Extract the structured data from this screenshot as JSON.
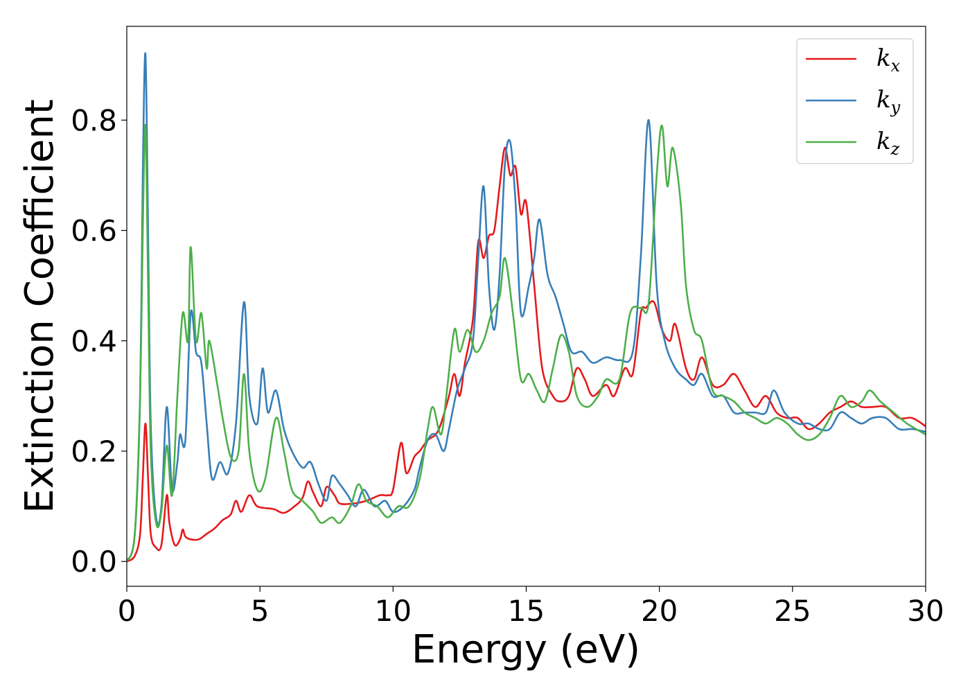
{
  "chart_data": {
    "type": "line",
    "title": "",
    "xlabel": "Energy (eV)",
    "ylabel": "Extinction Coefficient",
    "xlim": [
      0,
      30
    ],
    "ylim": [
      -0.045,
      0.97
    ],
    "xticks": [
      0,
      5,
      10,
      15,
      20,
      25,
      30
    ],
    "xtick_labels": [
      "0",
      "5",
      "10",
      "15",
      "20",
      "25",
      "30"
    ],
    "yticks": [
      0.0,
      0.2,
      0.4,
      0.6,
      0.8
    ],
    "ytick_labels": [
      "0.0",
      "0.2",
      "0.4",
      "0.6",
      "0.8"
    ],
    "grid": false,
    "legend": "top-right",
    "series": [
      {
        "name": "k_x",
        "base": "k",
        "sub": "x",
        "color": "#e41a1c",
        "points": [
          [
            0,
            0.0
          ],
          [
            0.3,
            0.01
          ],
          [
            0.5,
            0.05
          ],
          [
            0.6,
            0.15
          ],
          [
            0.7,
            0.25
          ],
          [
            0.8,
            0.15
          ],
          [
            0.9,
            0.05
          ],
          [
            1.1,
            0.025
          ],
          [
            1.3,
            0.03
          ],
          [
            1.5,
            0.12
          ],
          [
            1.6,
            0.07
          ],
          [
            1.8,
            0.03
          ],
          [
            2.0,
            0.04
          ],
          [
            2.1,
            0.058
          ],
          [
            2.2,
            0.045
          ],
          [
            2.4,
            0.04
          ],
          [
            2.7,
            0.04
          ],
          [
            3.0,
            0.05
          ],
          [
            3.3,
            0.06
          ],
          [
            3.6,
            0.075
          ],
          [
            3.9,
            0.085
          ],
          [
            4.1,
            0.11
          ],
          [
            4.3,
            0.09
          ],
          [
            4.6,
            0.12
          ],
          [
            4.9,
            0.1
          ],
          [
            5.5,
            0.095
          ],
          [
            5.9,
            0.088
          ],
          [
            6.3,
            0.1
          ],
          [
            6.6,
            0.115
          ],
          [
            6.8,
            0.145
          ],
          [
            7.0,
            0.125
          ],
          [
            7.3,
            0.1
          ],
          [
            7.5,
            0.135
          ],
          [
            7.8,
            0.12
          ],
          [
            8.0,
            0.105
          ],
          [
            8.5,
            0.105
          ],
          [
            9.0,
            0.11
          ],
          [
            9.5,
            0.12
          ],
          [
            9.8,
            0.12
          ],
          [
            10.0,
            0.13
          ],
          [
            10.3,
            0.215
          ],
          [
            10.5,
            0.16
          ],
          [
            10.8,
            0.19
          ],
          [
            11.0,
            0.2
          ],
          [
            11.3,
            0.22
          ],
          [
            11.6,
            0.23
          ],
          [
            11.8,
            0.25
          ],
          [
            12.1,
            0.3
          ],
          [
            12.3,
            0.34
          ],
          [
            12.5,
            0.3
          ],
          [
            12.7,
            0.36
          ],
          [
            13.0,
            0.44
          ],
          [
            13.2,
            0.58
          ],
          [
            13.4,
            0.55
          ],
          [
            13.6,
            0.59
          ],
          [
            13.8,
            0.6
          ],
          [
            14.0,
            0.68
          ],
          [
            14.2,
            0.75
          ],
          [
            14.4,
            0.7
          ],
          [
            14.6,
            0.715
          ],
          [
            14.8,
            0.63
          ],
          [
            15.0,
            0.65
          ],
          [
            15.3,
            0.5
          ],
          [
            15.6,
            0.35
          ],
          [
            16.0,
            0.3
          ],
          [
            16.3,
            0.29
          ],
          [
            16.6,
            0.3
          ],
          [
            16.9,
            0.35
          ],
          [
            17.2,
            0.33
          ],
          [
            17.5,
            0.3
          ],
          [
            18.0,
            0.32
          ],
          [
            18.3,
            0.3
          ],
          [
            18.7,
            0.35
          ],
          [
            19.0,
            0.34
          ],
          [
            19.3,
            0.45
          ],
          [
            19.5,
            0.46
          ],
          [
            19.8,
            0.47
          ],
          [
            20.1,
            0.42
          ],
          [
            20.4,
            0.4
          ],
          [
            20.6,
            0.43
          ],
          [
            21.0,
            0.35
          ],
          [
            21.3,
            0.33
          ],
          [
            21.6,
            0.37
          ],
          [
            22.0,
            0.32
          ],
          [
            22.4,
            0.32
          ],
          [
            22.8,
            0.34
          ],
          [
            23.2,
            0.31
          ],
          [
            23.6,
            0.28
          ],
          [
            24.0,
            0.3
          ],
          [
            24.4,
            0.27
          ],
          [
            24.8,
            0.26
          ],
          [
            25.2,
            0.26
          ],
          [
            25.6,
            0.24
          ],
          [
            26.0,
            0.25
          ],
          [
            26.4,
            0.27
          ],
          [
            26.8,
            0.28
          ],
          [
            27.2,
            0.29
          ],
          [
            27.6,
            0.28
          ],
          [
            28.0,
            0.28
          ],
          [
            28.5,
            0.28
          ],
          [
            29.0,
            0.26
          ],
          [
            29.5,
            0.26
          ],
          [
            30.0,
            0.245
          ]
        ]
      },
      {
        "name": "k_y",
        "base": "k",
        "sub": "y",
        "color": "#377eb8",
        "points": [
          [
            0,
            0.0
          ],
          [
            0.3,
            0.05
          ],
          [
            0.5,
            0.3
          ],
          [
            0.6,
            0.7
          ],
          [
            0.7,
            0.92
          ],
          [
            0.8,
            0.6
          ],
          [
            0.9,
            0.25
          ],
          [
            1.1,
            0.08
          ],
          [
            1.3,
            0.1
          ],
          [
            1.5,
            0.28
          ],
          [
            1.7,
            0.13
          ],
          [
            1.9,
            0.18
          ],
          [
            2.0,
            0.23
          ],
          [
            2.2,
            0.22
          ],
          [
            2.4,
            0.45
          ],
          [
            2.6,
            0.38
          ],
          [
            2.8,
            0.36
          ],
          [
            3.0,
            0.25
          ],
          [
            3.2,
            0.15
          ],
          [
            3.5,
            0.18
          ],
          [
            3.8,
            0.16
          ],
          [
            4.1,
            0.25
          ],
          [
            4.4,
            0.47
          ],
          [
            4.6,
            0.3
          ],
          [
            4.9,
            0.25
          ],
          [
            5.1,
            0.35
          ],
          [
            5.3,
            0.27
          ],
          [
            5.6,
            0.31
          ],
          [
            5.9,
            0.24
          ],
          [
            6.2,
            0.2
          ],
          [
            6.6,
            0.17
          ],
          [
            6.9,
            0.18
          ],
          [
            7.2,
            0.14
          ],
          [
            7.5,
            0.11
          ],
          [
            7.7,
            0.155
          ],
          [
            8.0,
            0.14
          ],
          [
            8.3,
            0.12
          ],
          [
            8.6,
            0.1
          ],
          [
            8.9,
            0.13
          ],
          [
            9.3,
            0.1
          ],
          [
            9.7,
            0.11
          ],
          [
            10.0,
            0.09
          ],
          [
            10.4,
            0.1
          ],
          [
            10.8,
            0.13
          ],
          [
            11.0,
            0.17
          ],
          [
            11.3,
            0.22
          ],
          [
            11.6,
            0.23
          ],
          [
            11.9,
            0.2
          ],
          [
            12.1,
            0.24
          ],
          [
            12.4,
            0.31
          ],
          [
            12.7,
            0.35
          ],
          [
            13.0,
            0.4
          ],
          [
            13.2,
            0.55
          ],
          [
            13.4,
            0.68
          ],
          [
            13.6,
            0.5
          ],
          [
            13.8,
            0.42
          ],
          [
            14.0,
            0.52
          ],
          [
            14.2,
            0.72
          ],
          [
            14.4,
            0.76
          ],
          [
            14.6,
            0.65
          ],
          [
            14.8,
            0.45
          ],
          [
            15.1,
            0.5
          ],
          [
            15.3,
            0.55
          ],
          [
            15.5,
            0.62
          ],
          [
            15.8,
            0.52
          ],
          [
            16.1,
            0.48
          ],
          [
            16.4,
            0.43
          ],
          [
            16.7,
            0.38
          ],
          [
            17.1,
            0.38
          ],
          [
            17.5,
            0.36
          ],
          [
            18.0,
            0.37
          ],
          [
            18.5,
            0.365
          ],
          [
            19.0,
            0.38
          ],
          [
            19.3,
            0.55
          ],
          [
            19.6,
            0.8
          ],
          [
            19.9,
            0.5
          ],
          [
            20.2,
            0.4
          ],
          [
            20.6,
            0.35
          ],
          [
            21.0,
            0.33
          ],
          [
            21.3,
            0.32
          ],
          [
            21.6,
            0.34
          ],
          [
            22.0,
            0.3
          ],
          [
            22.4,
            0.3
          ],
          [
            22.8,
            0.27
          ],
          [
            23.2,
            0.27
          ],
          [
            23.6,
            0.27
          ],
          [
            24.0,
            0.27
          ],
          [
            24.3,
            0.31
          ],
          [
            24.7,
            0.27
          ],
          [
            25.2,
            0.25
          ],
          [
            25.6,
            0.25
          ],
          [
            26.0,
            0.24
          ],
          [
            26.4,
            0.24
          ],
          [
            26.8,
            0.27
          ],
          [
            27.2,
            0.26
          ],
          [
            27.6,
            0.25
          ],
          [
            28.0,
            0.26
          ],
          [
            28.5,
            0.26
          ],
          [
            29.0,
            0.24
          ],
          [
            29.5,
            0.24
          ],
          [
            30.0,
            0.235
          ]
        ]
      },
      {
        "name": "k_z",
        "base": "k",
        "sub": "z",
        "color": "#4daf4a",
        "points": [
          [
            0,
            0.0
          ],
          [
            0.3,
            0.05
          ],
          [
            0.5,
            0.3
          ],
          [
            0.6,
            0.6
          ],
          [
            0.7,
            0.79
          ],
          [
            0.8,
            0.5
          ],
          [
            0.9,
            0.2
          ],
          [
            1.1,
            0.07
          ],
          [
            1.3,
            0.09
          ],
          [
            1.5,
            0.21
          ],
          [
            1.7,
            0.12
          ],
          [
            1.9,
            0.3
          ],
          [
            2.1,
            0.45
          ],
          [
            2.3,
            0.4
          ],
          [
            2.4,
            0.57
          ],
          [
            2.6,
            0.4
          ],
          [
            2.8,
            0.45
          ],
          [
            3.0,
            0.35
          ],
          [
            3.1,
            0.4
          ],
          [
            3.4,
            0.32
          ],
          [
            3.6,
            0.26
          ],
          [
            3.9,
            0.19
          ],
          [
            4.2,
            0.2
          ],
          [
            4.4,
            0.34
          ],
          [
            4.6,
            0.2
          ],
          [
            4.9,
            0.13
          ],
          [
            5.2,
            0.15
          ],
          [
            5.6,
            0.26
          ],
          [
            5.9,
            0.2
          ],
          [
            6.2,
            0.13
          ],
          [
            6.6,
            0.11
          ],
          [
            7.0,
            0.09
          ],
          [
            7.3,
            0.07
          ],
          [
            7.7,
            0.08
          ],
          [
            8.0,
            0.07
          ],
          [
            8.4,
            0.1
          ],
          [
            8.7,
            0.14
          ],
          [
            9.0,
            0.11
          ],
          [
            9.4,
            0.1
          ],
          [
            9.8,
            0.08
          ],
          [
            10.2,
            0.1
          ],
          [
            10.6,
            0.1
          ],
          [
            11.0,
            0.15
          ],
          [
            11.3,
            0.24
          ],
          [
            11.5,
            0.28
          ],
          [
            11.8,
            0.23
          ],
          [
            12.0,
            0.3
          ],
          [
            12.3,
            0.42
          ],
          [
            12.5,
            0.38
          ],
          [
            12.8,
            0.42
          ],
          [
            13.1,
            0.38
          ],
          [
            13.4,
            0.4
          ],
          [
            13.7,
            0.45
          ],
          [
            14.0,
            0.48
          ],
          [
            14.2,
            0.55
          ],
          [
            14.5,
            0.45
          ],
          [
            14.8,
            0.33
          ],
          [
            15.1,
            0.34
          ],
          [
            15.4,
            0.31
          ],
          [
            15.7,
            0.29
          ],
          [
            16.0,
            0.35
          ],
          [
            16.3,
            0.41
          ],
          [
            16.6,
            0.38
          ],
          [
            16.9,
            0.3
          ],
          [
            17.3,
            0.28
          ],
          [
            17.7,
            0.3
          ],
          [
            18.0,
            0.33
          ],
          [
            18.5,
            0.33
          ],
          [
            18.9,
            0.45
          ],
          [
            19.3,
            0.46
          ],
          [
            19.6,
            0.47
          ],
          [
            19.9,
            0.7
          ],
          [
            20.1,
            0.79
          ],
          [
            20.3,
            0.68
          ],
          [
            20.5,
            0.75
          ],
          [
            20.8,
            0.65
          ],
          [
            21.0,
            0.5
          ],
          [
            21.3,
            0.42
          ],
          [
            21.6,
            0.4
          ],
          [
            22.0,
            0.31
          ],
          [
            22.4,
            0.3
          ],
          [
            22.8,
            0.29
          ],
          [
            23.2,
            0.27
          ],
          [
            23.6,
            0.26
          ],
          [
            24.0,
            0.25
          ],
          [
            24.4,
            0.26
          ],
          [
            24.8,
            0.25
          ],
          [
            25.2,
            0.23
          ],
          [
            25.6,
            0.22
          ],
          [
            26.0,
            0.23
          ],
          [
            26.4,
            0.26
          ],
          [
            26.8,
            0.3
          ],
          [
            27.2,
            0.28
          ],
          [
            27.6,
            0.29
          ],
          [
            27.9,
            0.31
          ],
          [
            28.3,
            0.29
          ],
          [
            28.8,
            0.27
          ],
          [
            29.3,
            0.25
          ],
          [
            30.0,
            0.23
          ]
        ]
      }
    ]
  }
}
